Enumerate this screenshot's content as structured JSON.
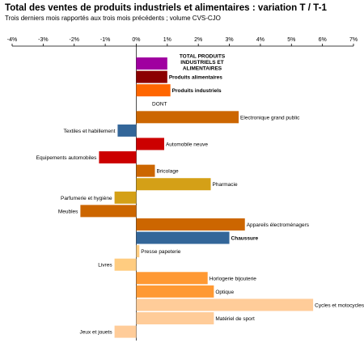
{
  "title": "Total des ventes de produits industriels et alimentaires : variation T / T-1",
  "subtitle": "Trois derniers mois rapportés aux trois mois précédents ; volume CVS-CJO",
  "chart_data": {
    "type": "bar",
    "orientation": "horizontal",
    "title": "Total des ventes de produits industriels et alimentaires : variation T / T-1",
    "subtitle": "Trois derniers mois rapportés aux trois mois précédents ; volume CVS-CJO",
    "xlim": [
      -4,
      7
    ],
    "tick_labels": [
      "-4%",
      "-3%",
      "-2%",
      "-1%",
      "0%",
      "1%",
      "2%",
      "3%",
      "4%",
      "5%",
      "6%",
      "7%"
    ],
    "grid": false,
    "categories": [
      "TOTAL PRODUITS INDUSTRIELS ET ALIMENTAIRES",
      "Produits alimentaires",
      "Produits industriels",
      "DONT",
      "Electronique grand public",
      "Textiles et habillement",
      "Automobile neuve",
      "Equipements automobiles",
      "Bricolage",
      "Pharmacie",
      "Parfumerie et hygiène",
      "Meubles",
      "Appareils électroménagers",
      "Chaussure",
      "Presse papeterie",
      "Livres",
      "Horlogerie bijouterie",
      "Optique",
      "Cycles et motocycles",
      "Matériel de sport",
      "Jeux et jouets"
    ],
    "values": [
      1.0,
      1.0,
      1.1,
      null,
      3.3,
      -0.6,
      0.9,
      -1.2,
      0.6,
      2.4,
      -0.7,
      -1.8,
      3.5,
      3.0,
      0.1,
      -0.7,
      2.3,
      2.5,
      5.7,
      2.5,
      -0.7
    ],
    "colors": [
      "#a000a0",
      "#8b0000",
      "#ff6600",
      null,
      "#cc6600",
      "#336699",
      "#cc0000",
      "#cc0000",
      "#cc6600",
      "#d4a017",
      "#d4a017",
      "#cc6600",
      "#cc6600",
      "#336699",
      "#ffcc80",
      "#ffcc80",
      "#ff9933",
      "#ff9933",
      "#ffcc99",
      "#ffcc99",
      "#ffcc99"
    ],
    "label_style": [
      "multiline-bold",
      "bold",
      "bold",
      "plain",
      "plain",
      "plain",
      "plain",
      "plain",
      "plain",
      "plain",
      "plain",
      "plain",
      "plain",
      "bold",
      "plain",
      "plain",
      "plain",
      "plain",
      "plain",
      "plain",
      "plain"
    ],
    "multiline_labels": {
      "0": [
        "TOTAL PRODUITS",
        "INDUSTRIELS ET",
        "ALIMENTAIRES"
      ]
    }
  }
}
